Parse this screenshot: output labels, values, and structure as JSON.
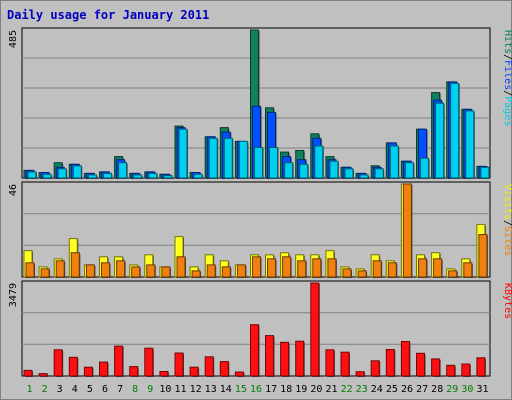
{
  "chart_data": {
    "type": "bar",
    "title": "Daily usage for January 2011",
    "categories": [
      "1",
      "2",
      "3",
      "4",
      "5",
      "6",
      "7",
      "8",
      "9",
      "10",
      "11",
      "12",
      "13",
      "14",
      "15",
      "16",
      "17",
      "18",
      "19",
      "20",
      "21",
      "22",
      "23",
      "24",
      "25",
      "26",
      "27",
      "28",
      "29",
      "30",
      "31"
    ],
    "weekend_days": [
      "1",
      "2",
      "8",
      "9",
      "15",
      "16",
      "22",
      "23",
      "29",
      "30"
    ],
    "panels": [
      {
        "id": "hits",
        "ymax": 485,
        "ymax_label": "485",
        "legend": [
          {
            "text": "Pages",
            "color": "#00c8e8"
          },
          {
            "text": "Files",
            "color": "#0040ff"
          },
          {
            "text": "Hits",
            "color": "#008060"
          }
        ],
        "separator_color": "#000000",
        "series": [
          {
            "name": "Hits",
            "color": "#108060",
            "values": [
              25,
              18,
              50,
              45,
              15,
              20,
              70,
              15,
              20,
              12,
              170,
              18,
              135,
              165,
              120,
              485,
              230,
              85,
              90,
              145,
              70,
              35,
              15,
              40,
              115,
              55,
              160,
              280,
              315,
              225,
              38
            ]
          },
          {
            "name": "Files",
            "color": "#0050ff",
            "values": [
              25,
              18,
              35,
              45,
              15,
              20,
              60,
              15,
              20,
              12,
              165,
              18,
              135,
              150,
              120,
              235,
              215,
              70,
              60,
              130,
              60,
              35,
              15,
              35,
              115,
              55,
              160,
              255,
              315,
              225,
              38
            ]
          },
          {
            "name": "Pages",
            "color": "#00d0f0",
            "values": [
              20,
              12,
              30,
              40,
              10,
              15,
              50,
              10,
              15,
              8,
              160,
              12,
              130,
              130,
              120,
              100,
              100,
              50,
              45,
              105,
              55,
              30,
              10,
              30,
              105,
              50,
              65,
              245,
              310,
              220,
              35
            ]
          }
        ]
      },
      {
        "id": "visits",
        "ymax": 46,
        "ymax_label": "46",
        "legend": [
          {
            "text": "Sites",
            "color": "#f08000"
          },
          {
            "text": "Visits",
            "color": "#f0f000"
          }
        ],
        "separator_color": "#000000",
        "series": [
          {
            "name": "Visits",
            "color": "#ffff20",
            "values": [
              13,
              5,
              9,
              19,
              6,
              10,
              10,
              6,
              11,
              5,
              20,
              5,
              11,
              8,
              6,
              11,
              11,
              12,
              11,
              11,
              13,
              5,
              4,
              11,
              8,
              46,
              11,
              12,
              4,
              9,
              26
            ]
          },
          {
            "name": "Sites",
            "color": "#f08010",
            "values": [
              7,
              4,
              8,
              12,
              6,
              7,
              8,
              5,
              6,
              5,
              10,
              3,
              6,
              5,
              6,
              10,
              9,
              10,
              8,
              9,
              9,
              4,
              3,
              8,
              7,
              46,
              9,
              9,
              3,
              7,
              21
            ]
          }
        ]
      },
      {
        "id": "kbytes",
        "ymax": 3479,
        "ymax_label": "3479",
        "legend": [
          {
            "text": "KBytes",
            "color": "#ff0000"
          }
        ],
        "separator_color": "#000000",
        "series": [
          {
            "name": "KBytes",
            "color": "#ff1010",
            "values": [
              210,
              90,
              980,
              700,
              330,
              520,
              1120,
              350,
              1040,
              170,
              860,
              330,
              720,
              540,
              150,
              1920,
              1510,
              1260,
              1300,
              3479,
              980,
              890,
              160,
              570,
              990,
              1290,
              850,
              640,
              400,
              450,
              680
            ]
          }
        ]
      }
    ]
  }
}
